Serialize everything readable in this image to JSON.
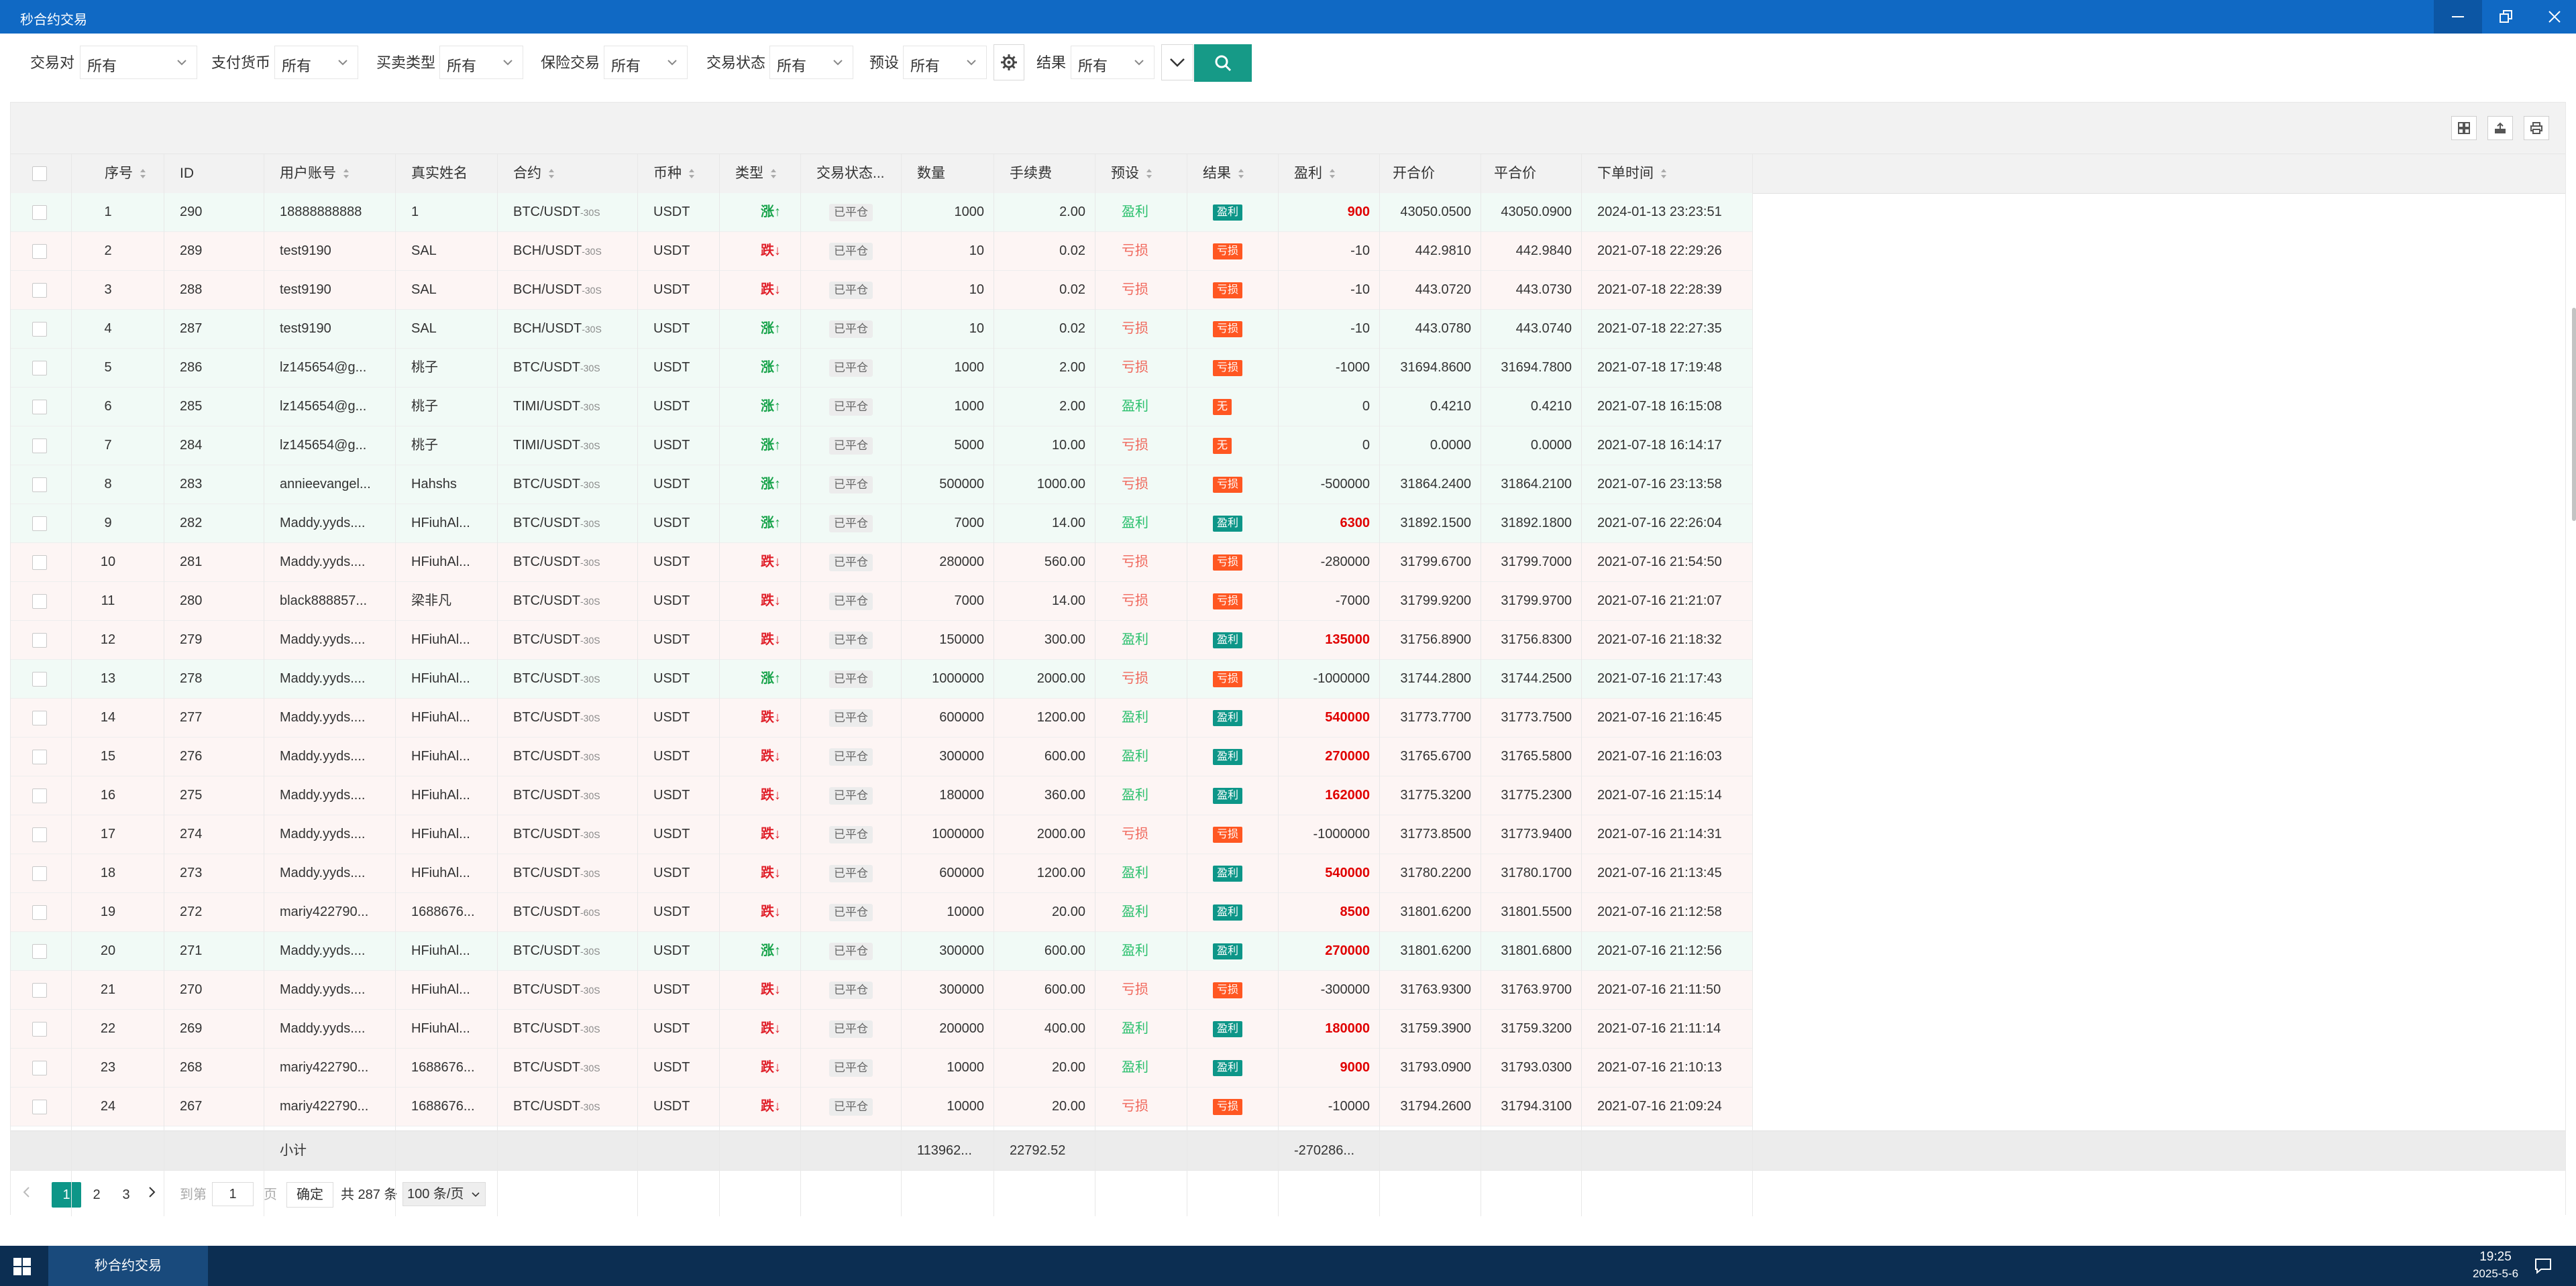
{
  "window": {
    "title": "秒合约交易"
  },
  "filters": [
    {
      "label": "交易对",
      "value": "所有"
    },
    {
      "label": "支付货币",
      "value": "所有"
    },
    {
      "label": "买卖类型",
      "value": "所有"
    },
    {
      "label": "保险交易",
      "value": "所有"
    },
    {
      "label": "交易状态",
      "value": "所有"
    },
    {
      "label": "预设",
      "value": "所有"
    },
    {
      "label": "结果",
      "value": "所有"
    }
  ],
  "columns": [
    "序号",
    "ID",
    "用户账号",
    "真实姓名",
    "合约",
    "币种",
    "类型",
    "交易状态...",
    "数量",
    "手续费",
    "预设",
    "结果",
    "盈利",
    "开合价",
    "平合价",
    "下单时间"
  ],
  "rows": [
    {
      "no": "1",
      "id": "290",
      "account": "18888888888",
      "name": "1",
      "contract": "BTC/USDT",
      "suffix": "-30S",
      "currency": "USDT",
      "dir": "up",
      "dir_label": "涨↑",
      "status": "已平仓",
      "qty": "1000",
      "fee": "2.00",
      "preset": "盈利",
      "preset_type": "win",
      "result": "盈利",
      "result_type": "win",
      "profit": "900",
      "profit_pos": true,
      "open": "43050.0500",
      "close": "43050.0900",
      "time": "2024-01-13 23:23:51"
    },
    {
      "no": "2",
      "id": "289",
      "account": "test9190",
      "name": "SAL",
      "contract": "BCH/USDT",
      "suffix": "-30S",
      "currency": "USDT",
      "dir": "down",
      "dir_label": "跌↓",
      "status": "已平仓",
      "qty": "10",
      "fee": "0.02",
      "preset": "亏损",
      "preset_type": "loss",
      "result": "亏损",
      "result_type": "loss",
      "profit": "-10",
      "profit_pos": false,
      "open": "442.9810",
      "close": "442.9840",
      "time": "2021-07-18 22:29:26"
    },
    {
      "no": "3",
      "id": "288",
      "account": "test9190",
      "name": "SAL",
      "contract": "BCH/USDT",
      "suffix": "-30S",
      "currency": "USDT",
      "dir": "down",
      "dir_label": "跌↓",
      "status": "已平仓",
      "qty": "10",
      "fee": "0.02",
      "preset": "亏损",
      "preset_type": "loss",
      "result": "亏损",
      "result_type": "loss",
      "profit": "-10",
      "profit_pos": false,
      "open": "443.0720",
      "close": "443.0730",
      "time": "2021-07-18 22:28:39"
    },
    {
      "no": "4",
      "id": "287",
      "account": "test9190",
      "name": "SAL",
      "contract": "BCH/USDT",
      "suffix": "-30S",
      "currency": "USDT",
      "dir": "up",
      "dir_label": "涨↑",
      "status": "已平仓",
      "qty": "10",
      "fee": "0.02",
      "preset": "亏损",
      "preset_type": "loss",
      "result": "亏损",
      "result_type": "loss",
      "profit": "-10",
      "profit_pos": false,
      "open": "443.0780",
      "close": "443.0740",
      "time": "2021-07-18 22:27:35"
    },
    {
      "no": "5",
      "id": "286",
      "account": "lz145654@g...",
      "name": "桃子",
      "contract": "BTC/USDT",
      "suffix": "-30S",
      "currency": "USDT",
      "dir": "up",
      "dir_label": "涨↑",
      "status": "已平仓",
      "qty": "1000",
      "fee": "2.00",
      "preset": "亏损",
      "preset_type": "loss",
      "result": "亏损",
      "result_type": "loss",
      "profit": "-1000",
      "profit_pos": false,
      "open": "31694.8600",
      "close": "31694.7800",
      "time": "2021-07-18 17:19:48"
    },
    {
      "no": "6",
      "id": "285",
      "account": "lz145654@g...",
      "name": "桃子",
      "contract": "TIMI/USDT",
      "suffix": "-30S",
      "currency": "USDT",
      "dir": "up",
      "dir_label": "涨↑",
      "status": "已平仓",
      "qty": "1000",
      "fee": "2.00",
      "preset": "盈利",
      "preset_type": "win",
      "result": "无",
      "result_type": "none",
      "profit": "0",
      "profit_pos": false,
      "open": "0.4210",
      "close": "0.4210",
      "time": "2021-07-18 16:15:08"
    },
    {
      "no": "7",
      "id": "284",
      "account": "lz145654@g...",
      "name": "桃子",
      "contract": "TIMI/USDT",
      "suffix": "-30S",
      "currency": "USDT",
      "dir": "up",
      "dir_label": "涨↑",
      "status": "已平仓",
      "qty": "5000",
      "fee": "10.00",
      "preset": "亏损",
      "preset_type": "loss",
      "result": "无",
      "result_type": "none",
      "profit": "0",
      "profit_pos": false,
      "open": "0.0000",
      "close": "0.0000",
      "time": "2021-07-18 16:14:17"
    },
    {
      "no": "8",
      "id": "283",
      "account": "annieevangel...",
      "name": "Hahshs",
      "contract": "BTC/USDT",
      "suffix": "-30S",
      "currency": "USDT",
      "dir": "up",
      "dir_label": "涨↑",
      "status": "已平仓",
      "qty": "500000",
      "fee": "1000.00",
      "preset": "亏损",
      "preset_type": "loss",
      "result": "亏损",
      "result_type": "loss",
      "profit": "-500000",
      "profit_pos": false,
      "open": "31864.2400",
      "close": "31864.2100",
      "time": "2021-07-16 23:13:58"
    },
    {
      "no": "9",
      "id": "282",
      "account": "Maddy.yyds....",
      "name": "HFiuhAl...",
      "contract": "BTC/USDT",
      "suffix": "-30S",
      "currency": "USDT",
      "dir": "up",
      "dir_label": "涨↑",
      "status": "已平仓",
      "qty": "7000",
      "fee": "14.00",
      "preset": "盈利",
      "preset_type": "win",
      "result": "盈利",
      "result_type": "win",
      "profit": "6300",
      "profit_pos": true,
      "open": "31892.1500",
      "close": "31892.1800",
      "time": "2021-07-16 22:26:04"
    },
    {
      "no": "10",
      "id": "281",
      "account": "Maddy.yyds....",
      "name": "HFiuhAl...",
      "contract": "BTC/USDT",
      "suffix": "-30S",
      "currency": "USDT",
      "dir": "down",
      "dir_label": "跌↓",
      "status": "已平仓",
      "qty": "280000",
      "fee": "560.00",
      "preset": "亏损",
      "preset_type": "loss",
      "result": "亏损",
      "result_type": "loss",
      "profit": "-280000",
      "profit_pos": false,
      "open": "31799.6700",
      "close": "31799.7000",
      "time": "2021-07-16 21:54:50"
    },
    {
      "no": "11",
      "id": "280",
      "account": "black888857...",
      "name": "梁非凡",
      "contract": "BTC/USDT",
      "suffix": "-30S",
      "currency": "USDT",
      "dir": "down",
      "dir_label": "跌↓",
      "status": "已平仓",
      "qty": "7000",
      "fee": "14.00",
      "preset": "亏损",
      "preset_type": "loss",
      "result": "亏损",
      "result_type": "loss",
      "profit": "-7000",
      "profit_pos": false,
      "open": "31799.9200",
      "close": "31799.9700",
      "time": "2021-07-16 21:21:07"
    },
    {
      "no": "12",
      "id": "279",
      "account": "Maddy.yyds....",
      "name": "HFiuhAl...",
      "contract": "BTC/USDT",
      "suffix": "-30S",
      "currency": "USDT",
      "dir": "down",
      "dir_label": "跌↓",
      "status": "已平仓",
      "qty": "150000",
      "fee": "300.00",
      "preset": "盈利",
      "preset_type": "win",
      "result": "盈利",
      "result_type": "win",
      "profit": "135000",
      "profit_pos": true,
      "open": "31756.8900",
      "close": "31756.8300",
      "time": "2021-07-16 21:18:32"
    },
    {
      "no": "13",
      "id": "278",
      "account": "Maddy.yyds....",
      "name": "HFiuhAl...",
      "contract": "BTC/USDT",
      "suffix": "-30S",
      "currency": "USDT",
      "dir": "up",
      "dir_label": "涨↑",
      "status": "已平仓",
      "qty": "1000000",
      "fee": "2000.00",
      "preset": "亏损",
      "preset_type": "loss",
      "result": "亏损",
      "result_type": "loss",
      "profit": "-1000000",
      "profit_pos": false,
      "open": "31744.2800",
      "close": "31744.2500",
      "time": "2021-07-16 21:17:43"
    },
    {
      "no": "14",
      "id": "277",
      "account": "Maddy.yyds....",
      "name": "HFiuhAl...",
      "contract": "BTC/USDT",
      "suffix": "-30S",
      "currency": "USDT",
      "dir": "down",
      "dir_label": "跌↓",
      "status": "已平仓",
      "qty": "600000",
      "fee": "1200.00",
      "preset": "盈利",
      "preset_type": "win",
      "result": "盈利",
      "result_type": "win",
      "profit": "540000",
      "profit_pos": true,
      "open": "31773.7700",
      "close": "31773.7500",
      "time": "2021-07-16 21:16:45"
    },
    {
      "no": "15",
      "id": "276",
      "account": "Maddy.yyds....",
      "name": "HFiuhAl...",
      "contract": "BTC/USDT",
      "suffix": "-30S",
      "currency": "USDT",
      "dir": "down",
      "dir_label": "跌↓",
      "status": "已平仓",
      "qty": "300000",
      "fee": "600.00",
      "preset": "盈利",
      "preset_type": "win",
      "result": "盈利",
      "result_type": "win",
      "profit": "270000",
      "profit_pos": true,
      "open": "31765.6700",
      "close": "31765.5800",
      "time": "2021-07-16 21:16:03"
    },
    {
      "no": "16",
      "id": "275",
      "account": "Maddy.yyds....",
      "name": "HFiuhAl...",
      "contract": "BTC/USDT",
      "suffix": "-30S",
      "currency": "USDT",
      "dir": "down",
      "dir_label": "跌↓",
      "status": "已平仓",
      "qty": "180000",
      "fee": "360.00",
      "preset": "盈利",
      "preset_type": "win",
      "result": "盈利",
      "result_type": "win",
      "profit": "162000",
      "profit_pos": true,
      "open": "31775.3200",
      "close": "31775.2300",
      "time": "2021-07-16 21:15:14"
    },
    {
      "no": "17",
      "id": "274",
      "account": "Maddy.yyds....",
      "name": "HFiuhAl...",
      "contract": "BTC/USDT",
      "suffix": "-30S",
      "currency": "USDT",
      "dir": "down",
      "dir_label": "跌↓",
      "status": "已平仓",
      "qty": "1000000",
      "fee": "2000.00",
      "preset": "亏损",
      "preset_type": "loss",
      "result": "亏损",
      "result_type": "loss",
      "profit": "-1000000",
      "profit_pos": false,
      "open": "31773.8500",
      "close": "31773.9400",
      "time": "2021-07-16 21:14:31"
    },
    {
      "no": "18",
      "id": "273",
      "account": "Maddy.yyds....",
      "name": "HFiuhAl...",
      "contract": "BTC/USDT",
      "suffix": "-30S",
      "currency": "USDT",
      "dir": "down",
      "dir_label": "跌↓",
      "status": "已平仓",
      "qty": "600000",
      "fee": "1200.00",
      "preset": "盈利",
      "preset_type": "win",
      "result": "盈利",
      "result_type": "win",
      "profit": "540000",
      "profit_pos": true,
      "open": "31780.2200",
      "close": "31780.1700",
      "time": "2021-07-16 21:13:45"
    },
    {
      "no": "19",
      "id": "272",
      "account": "mariy422790...",
      "name": "1688676...",
      "contract": "BTC/USDT",
      "suffix": "-60S",
      "currency": "USDT",
      "dir": "down",
      "dir_label": "跌↓",
      "status": "已平仓",
      "qty": "10000",
      "fee": "20.00",
      "preset": "盈利",
      "preset_type": "win",
      "result": "盈利",
      "result_type": "win",
      "profit": "8500",
      "profit_pos": true,
      "open": "31801.6200",
      "close": "31801.5500",
      "time": "2021-07-16 21:12:58"
    },
    {
      "no": "20",
      "id": "271",
      "account": "Maddy.yyds....",
      "name": "HFiuhAl...",
      "contract": "BTC/USDT",
      "suffix": "-30S",
      "currency": "USDT",
      "dir": "up",
      "dir_label": "涨↑",
      "status": "已平仓",
      "qty": "300000",
      "fee": "600.00",
      "preset": "盈利",
      "preset_type": "win",
      "result": "盈利",
      "result_type": "win",
      "profit": "270000",
      "profit_pos": true,
      "open": "31801.6200",
      "close": "31801.6800",
      "time": "2021-07-16 21:12:56"
    },
    {
      "no": "21",
      "id": "270",
      "account": "Maddy.yyds....",
      "name": "HFiuhAl...",
      "contract": "BTC/USDT",
      "suffix": "-30S",
      "currency": "USDT",
      "dir": "down",
      "dir_label": "跌↓",
      "status": "已平仓",
      "qty": "300000",
      "fee": "600.00",
      "preset": "亏损",
      "preset_type": "loss",
      "result": "亏损",
      "result_type": "loss",
      "profit": "-300000",
      "profit_pos": false,
      "open": "31763.9300",
      "close": "31763.9700",
      "time": "2021-07-16 21:11:50"
    },
    {
      "no": "22",
      "id": "269",
      "account": "Maddy.yyds....",
      "name": "HFiuhAl...",
      "contract": "BTC/USDT",
      "suffix": "-30S",
      "currency": "USDT",
      "dir": "down",
      "dir_label": "跌↓",
      "status": "已平仓",
      "qty": "200000",
      "fee": "400.00",
      "preset": "盈利",
      "preset_type": "win",
      "result": "盈利",
      "result_type": "win",
      "profit": "180000",
      "profit_pos": true,
      "open": "31759.3900",
      "close": "31759.3200",
      "time": "2021-07-16 21:11:14"
    },
    {
      "no": "23",
      "id": "268",
      "account": "mariy422790...",
      "name": "1688676...",
      "contract": "BTC/USDT",
      "suffix": "-30S",
      "currency": "USDT",
      "dir": "down",
      "dir_label": "跌↓",
      "status": "已平仓",
      "qty": "10000",
      "fee": "20.00",
      "preset": "盈利",
      "preset_type": "win",
      "result": "盈利",
      "result_type": "win",
      "profit": "9000",
      "profit_pos": true,
      "open": "31793.0900",
      "close": "31793.0300",
      "time": "2021-07-16 21:10:13"
    },
    {
      "no": "24",
      "id": "267",
      "account": "mariy422790...",
      "name": "1688676...",
      "contract": "BTC/USDT",
      "suffix": "-30S",
      "currency": "USDT",
      "dir": "down",
      "dir_label": "跌↓",
      "status": "已平仓",
      "qty": "10000",
      "fee": "20.00",
      "preset": "亏损",
      "preset_type": "loss",
      "result": "亏损",
      "result_type": "loss",
      "profit": "-10000",
      "profit_pos": false,
      "open": "31794.2600",
      "close": "31794.3100",
      "time": "2021-07-16 21:09:24"
    }
  ],
  "totals": {
    "label": "小计",
    "qty": "113962...",
    "fee": "22792.52",
    "profit": "-270286..."
  },
  "pager": {
    "pages": [
      "1",
      "2",
      "3"
    ],
    "goto_label": "到第",
    "goto_value": "1",
    "page_unit": "页",
    "confirm": "确定",
    "total": "共 287 条",
    "per_page": "100 条/页"
  },
  "taskbar": {
    "app": "秒合约交易",
    "time": "19:25",
    "date": "2025-5-6"
  },
  "colors": {
    "titlebar": "#1069c4",
    "accent": "#0d9688",
    "loss_tag": "#ff5722",
    "taskbar": "#0c2e52"
  }
}
